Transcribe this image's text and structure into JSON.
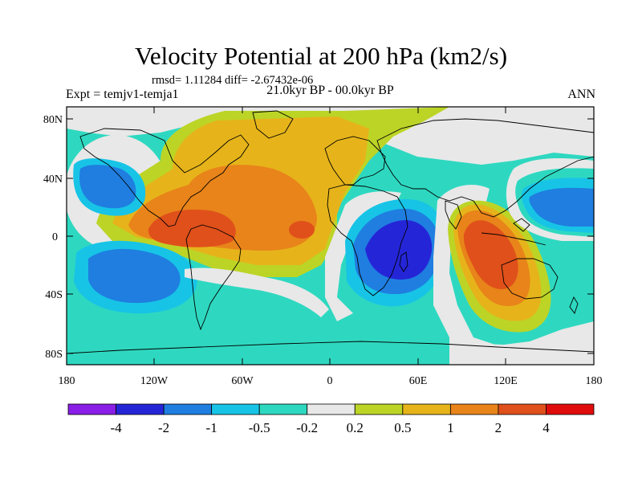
{
  "title": "Velocity Potential at 200 hPa (km2/s)",
  "stats": "rmsd= 1.11284 diff= -2.67432e-06",
  "subtitle": "21.0kyr BP - 00.0kyr BP",
  "experiment": "Expt = temjv1-temja1",
  "season": "ANN",
  "axes": {
    "y_ticks": [
      "80N",
      "40N",
      "0",
      "40S",
      "80S"
    ],
    "x_ticks": [
      "180",
      "120W",
      "60W",
      "0",
      "60E",
      "120E",
      "180"
    ]
  },
  "colorbar": {
    "levels": [
      "-4",
      "-2",
      "-1",
      "-0.5",
      "-0.2",
      "0.2",
      "0.5",
      "1",
      "2",
      "4"
    ],
    "colors": [
      "#8a1ee6",
      "#2525d8",
      "#1f7ee0",
      "#17c4e6",
      "#2ed8c0",
      "#e8e8e8",
      "#bcd426",
      "#e6b41a",
      "#e8841a",
      "#e0501a",
      "#e00c0c"
    ]
  },
  "contour_colors": {
    "strong_negative": "#2525d8",
    "negative": "#1f7ee0",
    "moderate_negative": "#17c4e6",
    "weak_negative": "#2ed8c0",
    "neutral": "#e8e8e8",
    "weak_positive": "#bcd426",
    "moderate_positive": "#e6b41a",
    "positive": "#e8841a",
    "strong_positive": "#e0501a"
  }
}
